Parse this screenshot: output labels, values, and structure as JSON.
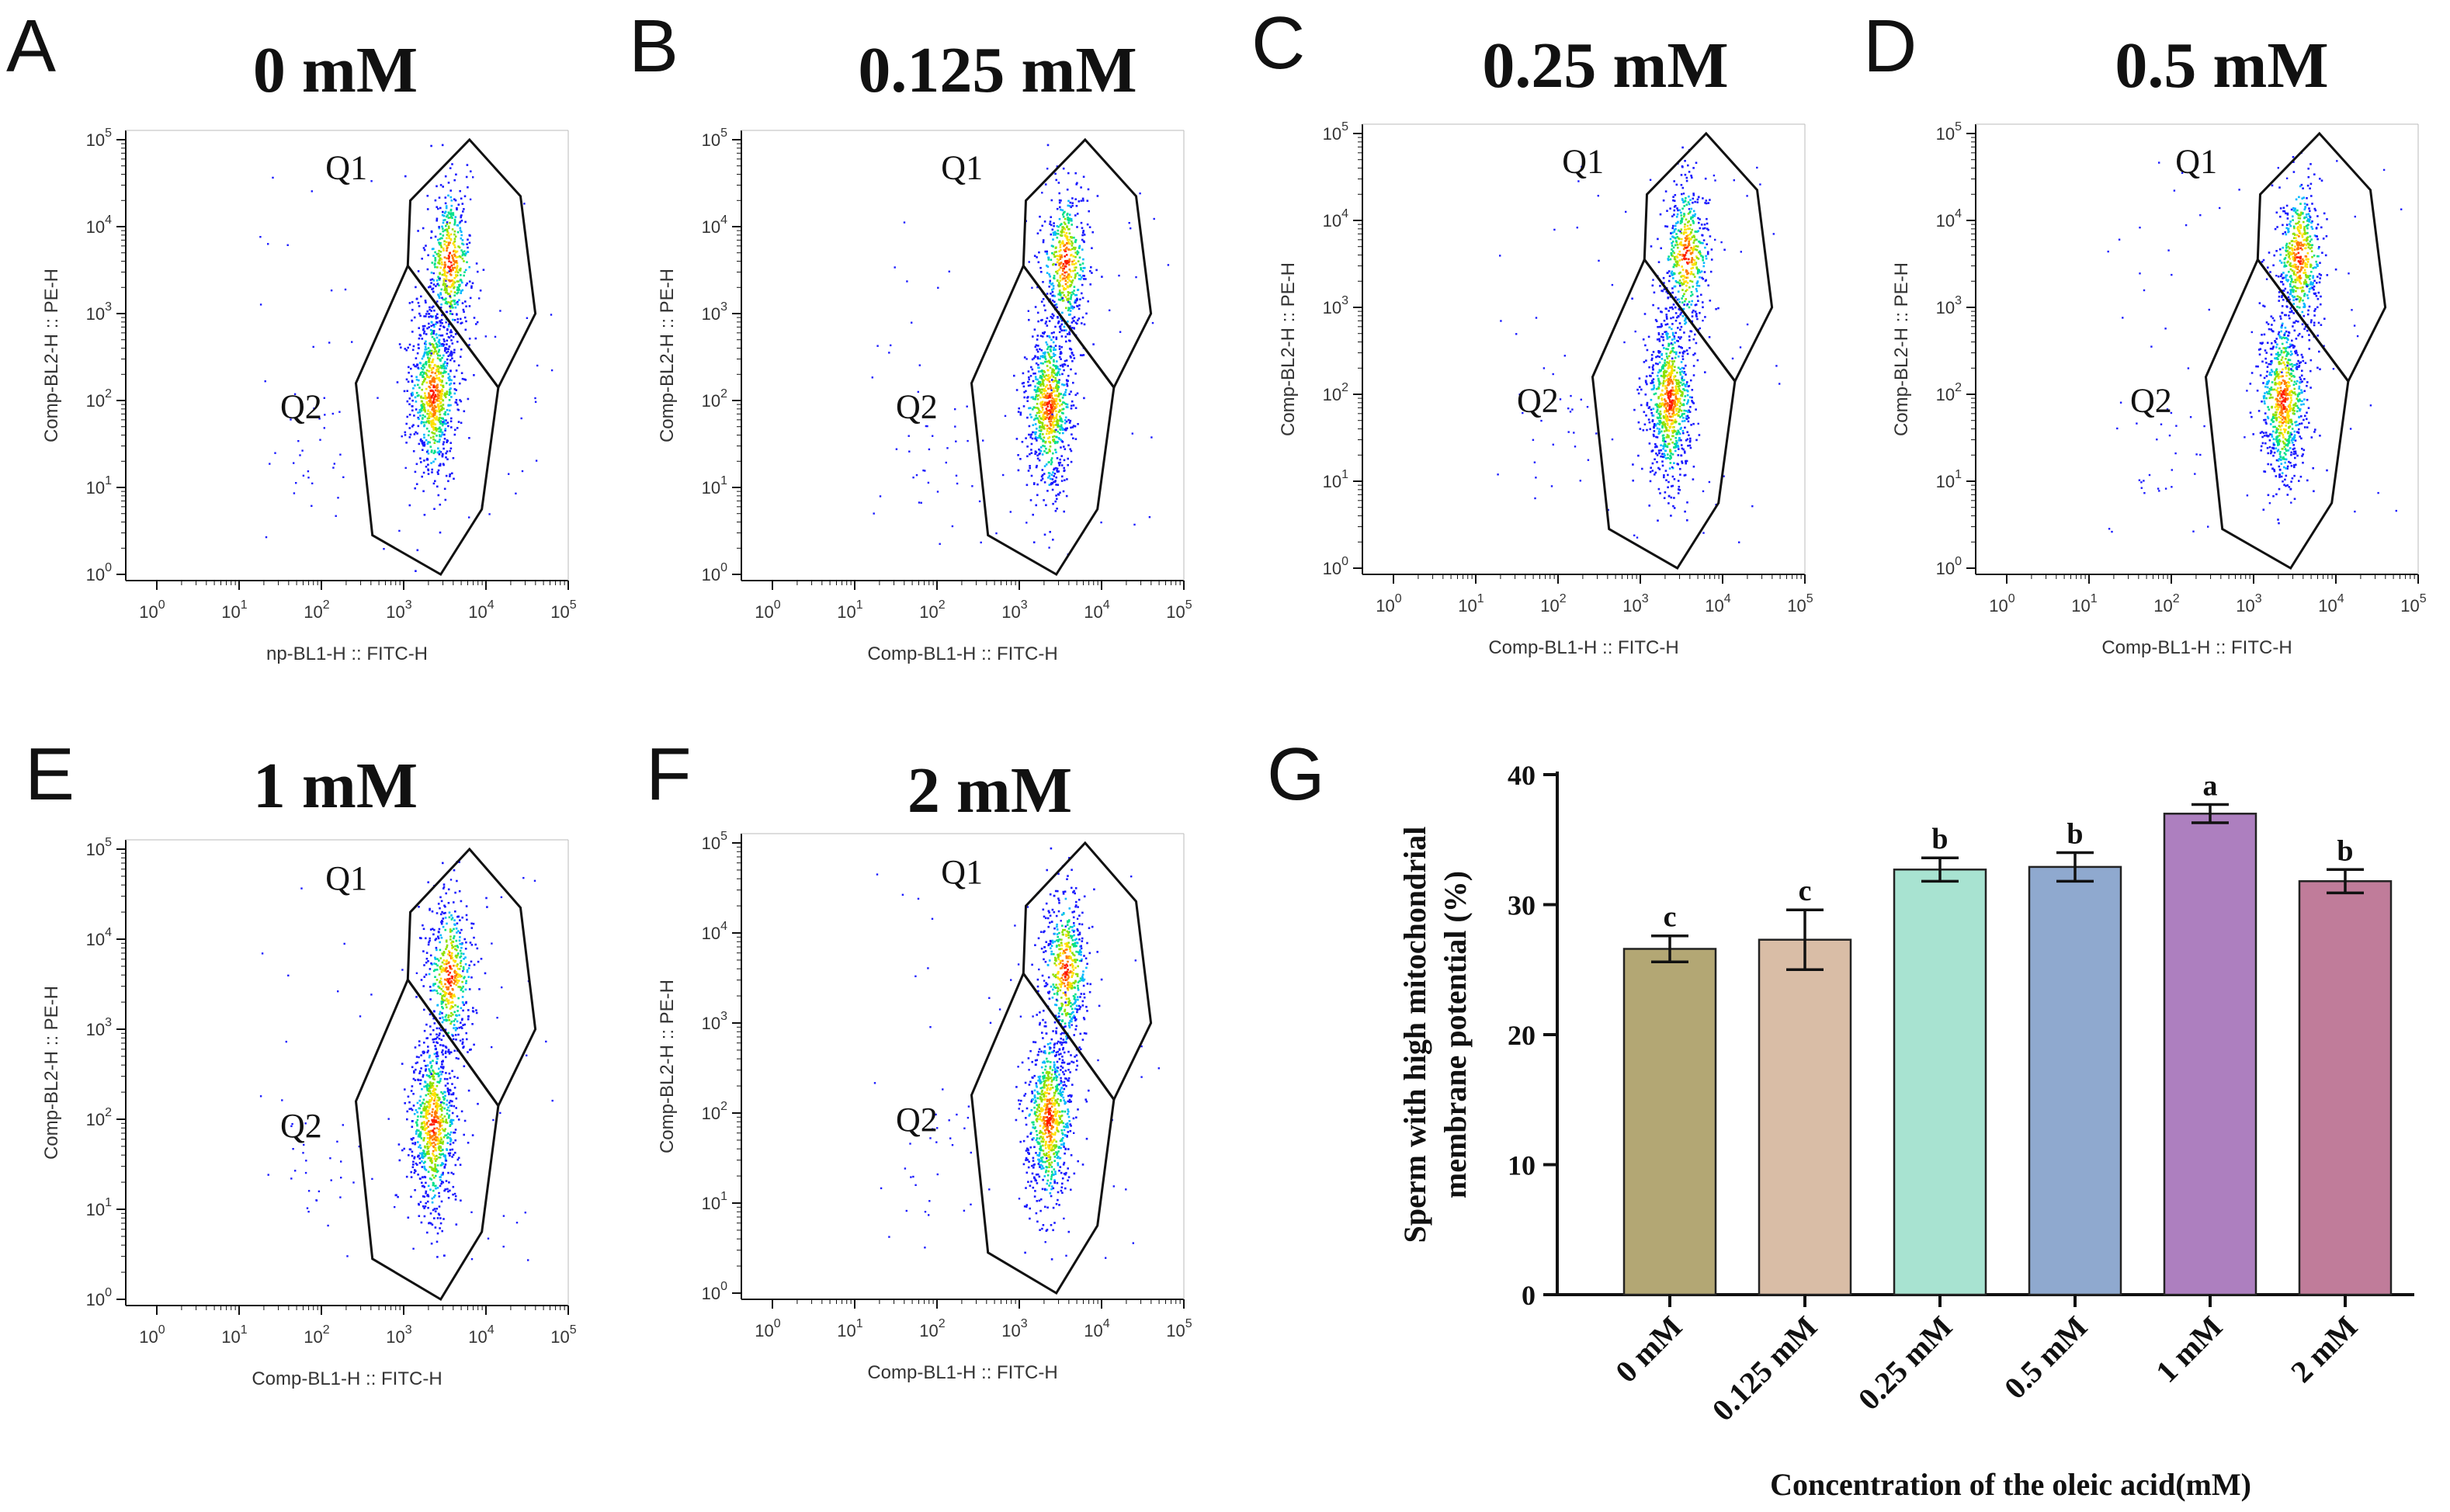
{
  "flow_panels": [
    {
      "label": "A",
      "title": "0 mM",
      "xlabel": "np-BL1-H :: FITC-H",
      "ylabel": "Comp-BL2-H :: PE-H",
      "gates": [
        "Q1",
        "Q2"
      ]
    },
    {
      "label": "B",
      "title": "0.125 mM",
      "xlabel": "Comp-BL1-H :: FITC-H",
      "ylabel": "Comp-BL2-H :: PE-H",
      "gates": [
        "Q1",
        "Q2"
      ]
    },
    {
      "label": "C",
      "title": "0.25 mM",
      "xlabel": "Comp-BL1-H :: FITC-H",
      "ylabel": "Comp-BL2-H :: PE-H",
      "gates": [
        "Q1",
        "Q2"
      ]
    },
    {
      "label": "D",
      "title": "0.5 mM",
      "xlabel": "Comp-BL1-H :: FITC-H",
      "ylabel": "Comp-BL2-H :: PE-H",
      "gates": [
        "Q1",
        "Q2"
      ]
    },
    {
      "label": "E",
      "title": "1 mM",
      "xlabel": "Comp-BL1-H :: FITC-H",
      "ylabel": "Comp-BL2-H :: PE-H",
      "gates": [
        "Q1",
        "Q2"
      ]
    },
    {
      "label": "F",
      "title": "2 mM",
      "xlabel": "Comp-BL1-H :: FITC-H",
      "ylabel": "Comp-BL2-H :: PE-H",
      "gates": [
        "Q1",
        "Q2"
      ]
    }
  ],
  "log_ticks": {
    "base": "10",
    "exponents": [
      "0",
      "1",
      "2",
      "3",
      "4",
      "5"
    ]
  },
  "chart_data": {
    "type": "bar",
    "panel_label": "G",
    "categories": [
      "0 mM",
      "0.125 mM",
      "0.25 mM",
      "0.5 mM",
      "1 mM",
      "2 mM"
    ],
    "values": [
      26.6,
      27.3,
      32.7,
      32.9,
      37.0,
      31.8
    ],
    "errors": [
      1.0,
      2.3,
      0.9,
      1.1,
      0.7,
      0.9
    ],
    "significance": [
      "c",
      "c",
      "b",
      "b",
      "a",
      "b"
    ],
    "colors": [
      "#b3a774",
      "#d9bda6",
      "#a8e3d1",
      "#8fa9cf",
      "#ad7fbf",
      "#c07c9a"
    ],
    "xlabel": "Concentration of the oleic acid(mM)",
    "ylabel_line1": "Sperm with high mitochondrial",
    "ylabel_line2": "membrane potential  (%)",
    "yticks": [
      "0",
      "10",
      "20",
      "30",
      "40"
    ],
    "ylim": [
      0,
      40
    ]
  }
}
